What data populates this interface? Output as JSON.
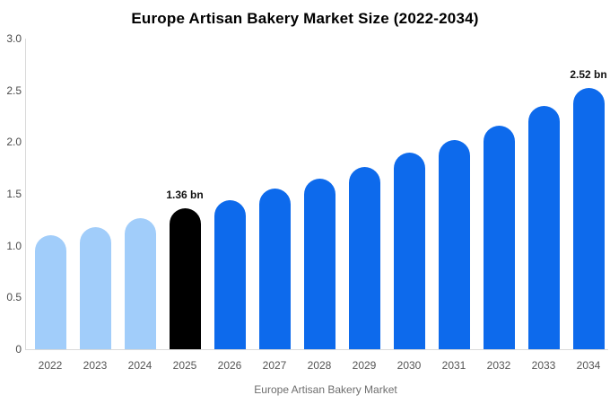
{
  "title": "Europe Artisan Bakery Market Size (2022-2034)",
  "chart_data": {
    "type": "bar",
    "categories": [
      "2022",
      "2023",
      "2024",
      "2025",
      "2026",
      "2027",
      "2028",
      "2029",
      "2030",
      "2031",
      "2032",
      "2033",
      "2034"
    ],
    "values": [
      1.1,
      1.18,
      1.27,
      1.36,
      1.44,
      1.55,
      1.65,
      1.76,
      1.9,
      2.02,
      2.16,
      2.35,
      2.52
    ],
    "bar_colors": [
      "#a1cdfa",
      "#a1cdfa",
      "#a1cdfa",
      "#000000",
      "#0d6aec",
      "#0d6aec",
      "#0d6aec",
      "#0d6aec",
      "#0d6aec",
      "#0d6aec",
      "#0d6aec",
      "#0d6aec",
      "#0d6aec"
    ],
    "colors": {
      "historical": "#a1cdfa",
      "highlight": "#000000",
      "forecast": "#0d6aec",
      "axis": "#d9d9d9"
    },
    "annotations": [
      {
        "index": 3,
        "text": "1.36 bn"
      },
      {
        "index": 12,
        "text": "2.52 bn"
      }
    ],
    "xlabel": "",
    "ylabel": "",
    "ylim": [
      0,
      3.0
    ],
    "yticks": [
      {
        "value": 3.0,
        "label": "3.0"
      },
      {
        "value": 2.5,
        "label": "2.5"
      },
      {
        "value": 2.0,
        "label": "2.0"
      },
      {
        "value": 1.5,
        "label": "1.5"
      },
      {
        "value": 1.0,
        "label": "1.0"
      },
      {
        "value": 0.5,
        "label": "0.5"
      },
      {
        "value": 0,
        "label": "0"
      }
    ],
    "grid": "off",
    "legend": {
      "position": "bottom-center",
      "label": "Europe Artisan Bakery Market",
      "swatch_color": "#a1cdfa"
    }
  }
}
